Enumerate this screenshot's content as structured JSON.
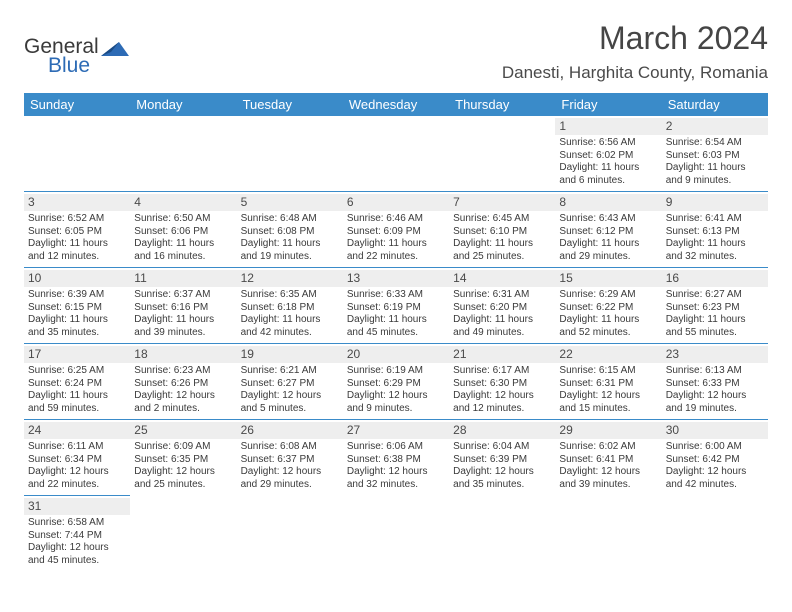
{
  "logo": {
    "general": "General",
    "blue": "Blue"
  },
  "title": "March 2024",
  "location": "Danesti, Harghita County, Romania",
  "colors": {
    "header_bg": "#3a8bc9",
    "logo_blue": "#2d6bb5",
    "daynum_bg": "#eeeeee",
    "text": "#3a3a3a"
  },
  "daysOfWeek": [
    "Sunday",
    "Monday",
    "Tuesday",
    "Wednesday",
    "Thursday",
    "Friday",
    "Saturday"
  ],
  "leadingEmpty": 5,
  "days": [
    {
      "n": "1",
      "sunrise": "Sunrise: 6:56 AM",
      "sunset": "Sunset: 6:02 PM",
      "daylight": "Daylight: 11 hours and 6 minutes."
    },
    {
      "n": "2",
      "sunrise": "Sunrise: 6:54 AM",
      "sunset": "Sunset: 6:03 PM",
      "daylight": "Daylight: 11 hours and 9 minutes."
    },
    {
      "n": "3",
      "sunrise": "Sunrise: 6:52 AM",
      "sunset": "Sunset: 6:05 PM",
      "daylight": "Daylight: 11 hours and 12 minutes."
    },
    {
      "n": "4",
      "sunrise": "Sunrise: 6:50 AM",
      "sunset": "Sunset: 6:06 PM",
      "daylight": "Daylight: 11 hours and 16 minutes."
    },
    {
      "n": "5",
      "sunrise": "Sunrise: 6:48 AM",
      "sunset": "Sunset: 6:08 PM",
      "daylight": "Daylight: 11 hours and 19 minutes."
    },
    {
      "n": "6",
      "sunrise": "Sunrise: 6:46 AM",
      "sunset": "Sunset: 6:09 PM",
      "daylight": "Daylight: 11 hours and 22 minutes."
    },
    {
      "n": "7",
      "sunrise": "Sunrise: 6:45 AM",
      "sunset": "Sunset: 6:10 PM",
      "daylight": "Daylight: 11 hours and 25 minutes."
    },
    {
      "n": "8",
      "sunrise": "Sunrise: 6:43 AM",
      "sunset": "Sunset: 6:12 PM",
      "daylight": "Daylight: 11 hours and 29 minutes."
    },
    {
      "n": "9",
      "sunrise": "Sunrise: 6:41 AM",
      "sunset": "Sunset: 6:13 PM",
      "daylight": "Daylight: 11 hours and 32 minutes."
    },
    {
      "n": "10",
      "sunrise": "Sunrise: 6:39 AM",
      "sunset": "Sunset: 6:15 PM",
      "daylight": "Daylight: 11 hours and 35 minutes."
    },
    {
      "n": "11",
      "sunrise": "Sunrise: 6:37 AM",
      "sunset": "Sunset: 6:16 PM",
      "daylight": "Daylight: 11 hours and 39 minutes."
    },
    {
      "n": "12",
      "sunrise": "Sunrise: 6:35 AM",
      "sunset": "Sunset: 6:18 PM",
      "daylight": "Daylight: 11 hours and 42 minutes."
    },
    {
      "n": "13",
      "sunrise": "Sunrise: 6:33 AM",
      "sunset": "Sunset: 6:19 PM",
      "daylight": "Daylight: 11 hours and 45 minutes."
    },
    {
      "n": "14",
      "sunrise": "Sunrise: 6:31 AM",
      "sunset": "Sunset: 6:20 PM",
      "daylight": "Daylight: 11 hours and 49 minutes."
    },
    {
      "n": "15",
      "sunrise": "Sunrise: 6:29 AM",
      "sunset": "Sunset: 6:22 PM",
      "daylight": "Daylight: 11 hours and 52 minutes."
    },
    {
      "n": "16",
      "sunrise": "Sunrise: 6:27 AM",
      "sunset": "Sunset: 6:23 PM",
      "daylight": "Daylight: 11 hours and 55 minutes."
    },
    {
      "n": "17",
      "sunrise": "Sunrise: 6:25 AM",
      "sunset": "Sunset: 6:24 PM",
      "daylight": "Daylight: 11 hours and 59 minutes."
    },
    {
      "n": "18",
      "sunrise": "Sunrise: 6:23 AM",
      "sunset": "Sunset: 6:26 PM",
      "daylight": "Daylight: 12 hours and 2 minutes."
    },
    {
      "n": "19",
      "sunrise": "Sunrise: 6:21 AM",
      "sunset": "Sunset: 6:27 PM",
      "daylight": "Daylight: 12 hours and 5 minutes."
    },
    {
      "n": "20",
      "sunrise": "Sunrise: 6:19 AM",
      "sunset": "Sunset: 6:29 PM",
      "daylight": "Daylight: 12 hours and 9 minutes."
    },
    {
      "n": "21",
      "sunrise": "Sunrise: 6:17 AM",
      "sunset": "Sunset: 6:30 PM",
      "daylight": "Daylight: 12 hours and 12 minutes."
    },
    {
      "n": "22",
      "sunrise": "Sunrise: 6:15 AM",
      "sunset": "Sunset: 6:31 PM",
      "daylight": "Daylight: 12 hours and 15 minutes."
    },
    {
      "n": "23",
      "sunrise": "Sunrise: 6:13 AM",
      "sunset": "Sunset: 6:33 PM",
      "daylight": "Daylight: 12 hours and 19 minutes."
    },
    {
      "n": "24",
      "sunrise": "Sunrise: 6:11 AM",
      "sunset": "Sunset: 6:34 PM",
      "daylight": "Daylight: 12 hours and 22 minutes."
    },
    {
      "n": "25",
      "sunrise": "Sunrise: 6:09 AM",
      "sunset": "Sunset: 6:35 PM",
      "daylight": "Daylight: 12 hours and 25 minutes."
    },
    {
      "n": "26",
      "sunrise": "Sunrise: 6:08 AM",
      "sunset": "Sunset: 6:37 PM",
      "daylight": "Daylight: 12 hours and 29 minutes."
    },
    {
      "n": "27",
      "sunrise": "Sunrise: 6:06 AM",
      "sunset": "Sunset: 6:38 PM",
      "daylight": "Daylight: 12 hours and 32 minutes."
    },
    {
      "n": "28",
      "sunrise": "Sunrise: 6:04 AM",
      "sunset": "Sunset: 6:39 PM",
      "daylight": "Daylight: 12 hours and 35 minutes."
    },
    {
      "n": "29",
      "sunrise": "Sunrise: 6:02 AM",
      "sunset": "Sunset: 6:41 PM",
      "daylight": "Daylight: 12 hours and 39 minutes."
    },
    {
      "n": "30",
      "sunrise": "Sunrise: 6:00 AM",
      "sunset": "Sunset: 6:42 PM",
      "daylight": "Daylight: 12 hours and 42 minutes."
    },
    {
      "n": "31",
      "sunrise": "Sunrise: 6:58 AM",
      "sunset": "Sunset: 7:44 PM",
      "daylight": "Daylight: 12 hours and 45 minutes."
    }
  ]
}
